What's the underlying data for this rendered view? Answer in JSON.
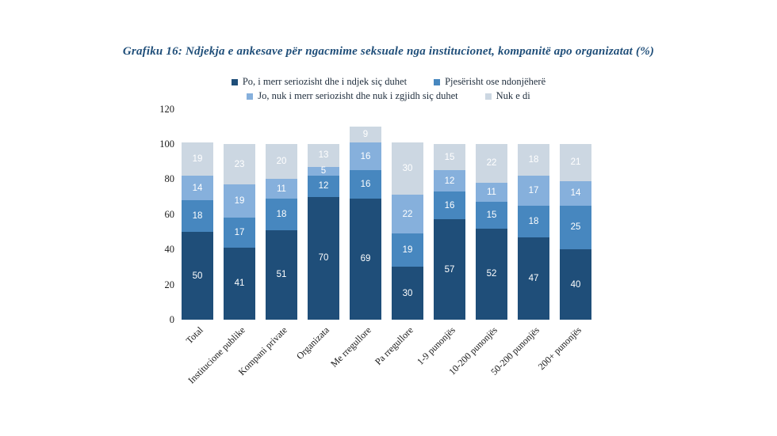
{
  "page": {
    "background": "#ffffff",
    "text_color": "#1b1b1b"
  },
  "chart_data": {
    "type": "bar",
    "stacked": true,
    "title": "Grafiku 16: Ndjekja e ankesave për ngacmime seksuale nga institucionet, kompanitë apo organizatat (%)",
    "title_color": "#1F4E79",
    "categories": [
      "Total",
      "Institucione publike",
      "Kompani private",
      "Organizata",
      "Me rregullore",
      "Pa rregullore",
      "1-9 punonjës",
      "10-200 punonjës",
      "50-200 punonjës",
      "200+ punonjës"
    ],
    "series": [
      {
        "name": "Po, i merr seriozisht dhe i ndjek siç duhet",
        "color": "#1F4E79",
        "values": [
          50,
          41,
          51,
          70,
          69,
          30,
          57,
          52,
          47,
          40
        ]
      },
      {
        "name": "Pjesërisht ose ndonjëherë",
        "color": "#4787BF",
        "values": [
          18,
          17,
          18,
          12,
          16,
          19,
          16,
          15,
          18,
          25
        ]
      },
      {
        "name": "Jo, nuk i merr seriozisht dhe nuk i zgjidh siç duhet",
        "color": "#86B0DC",
        "values": [
          14,
          19,
          11,
          5,
          16,
          22,
          12,
          11,
          17,
          14
        ]
      },
      {
        "name": "Nuk e di",
        "color": "#CCD7E2",
        "values": [
          19,
          23,
          20,
          13,
          9,
          30,
          15,
          22,
          18,
          21
        ]
      }
    ],
    "yticks": [
      0,
      20,
      40,
      60,
      80,
      100,
      120
    ],
    "ylim": [
      0,
      120
    ],
    "grid": false,
    "axis_lines": false,
    "legend_position": "top",
    "legend_rows": [
      [
        0,
        1
      ],
      [
        2,
        3
      ]
    ],
    "data_label_color": "#ffffff",
    "xlabel": "",
    "ylabel": ""
  }
}
